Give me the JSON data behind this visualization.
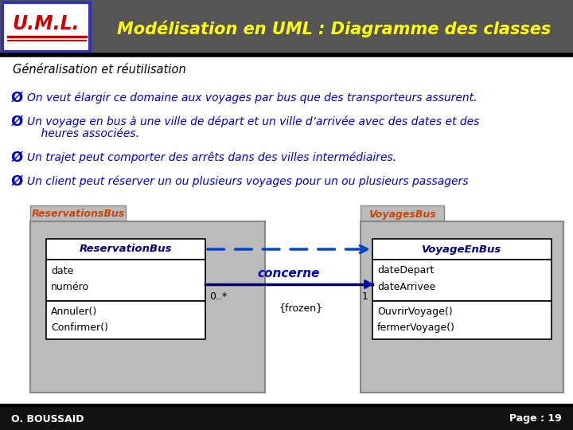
{
  "title": "Modélisation en UML : Diagramme des classes",
  "uml_label": "U.M.L.",
  "subtitle": "Généralisation et réutilisation",
  "bullet1": "On veut élargir ce domaine aux voyages par bus que des transporteurs assurent.",
  "bullet2a": "Un voyage en bus à une ville de départ et un ville d’arrivée avec des dates et des",
  "bullet2b": "    heures associées.",
  "bullet3": "Un trajet peut comporter des arrêts dans des villes intermédiaires.",
  "bullet4": "Un client peut réserver un ou plusieurs voyages pour un ou plusieurs passagers",
  "header_bg": "#555555",
  "header_text_color": "#FFFF00",
  "uml_box_bg": "#FFFFFF",
  "uml_box_border": "#3333BB",
  "uml_text_color": "#CC0000",
  "footer_bg": "#111111",
  "footer_text": "O. BOUSSAID",
  "footer_page": "Page : 19",
  "package1_label": "ReservationsBus",
  "package2_label": "VoyagesBus",
  "class1_name": "ReservationBus",
  "class1_attrs": [
    "date",
    "numéro"
  ],
  "class1_methods": [
    "Annuler()",
    "Confirmer()"
  ],
  "class2_name": "VoyageEnBus",
  "class2_attrs": [
    "dateDepart",
    "dateArrivee"
  ],
  "class2_methods": [
    "OuvrirVoyage()",
    "fermerVoyage()"
  ],
  "assoc_label": "concerne",
  "assoc_left": "0..*",
  "assoc_right": "1",
  "assoc_frozen": "{frozen}",
  "bullet_color": "#0000CC",
  "bullet_arrow_color": "#0000CC",
  "package_label_color": "#CC4400",
  "class_name_color": "#000080",
  "bg_color": "#FFFFFF",
  "pkg_bg": "#BBBBBB",
  "pkg_border": "#888888",
  "class_bg": "#FFFFFF",
  "class_border": "#000000"
}
